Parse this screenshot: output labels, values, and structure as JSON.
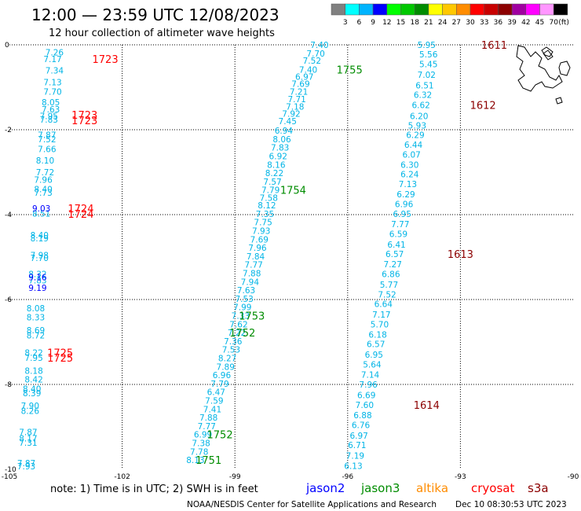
{
  "header": {
    "title": "12:00 — 23:59 UTC 12/08/2023",
    "subtitle": "12 hour collection of altimeter wave heights"
  },
  "legend": {
    "unit": "(ft)",
    "bins": [
      {
        "label": "3",
        "color": "#808080"
      },
      {
        "label": "6",
        "color": "#00ffff"
      },
      {
        "label": "9",
        "color": "#00b4ff"
      },
      {
        "label": "12",
        "color": "#0000ff"
      },
      {
        "label": "15",
        "color": "#00ff00"
      },
      {
        "label": "18",
        "color": "#00c800"
      },
      {
        "label": "21",
        "color": "#008c00"
      },
      {
        "label": "24",
        "color": "#ffff00"
      },
      {
        "label": "27",
        "color": "#ffc800"
      },
      {
        "label": "30",
        "color": "#ff8c00"
      },
      {
        "label": "33",
        "color": "#ff0000"
      },
      {
        "label": "36",
        "color": "#c80000"
      },
      {
        "label": "39",
        "color": "#8c0000"
      },
      {
        "label": "42",
        "color": "#a000a0"
      },
      {
        "label": "45",
        "color": "#ff00ff"
      },
      {
        "label": "70",
        "color": "#ff96ff"
      },
      {
        "label": "",
        "color": "#000000"
      }
    ]
  },
  "map": {
    "lon_range": [
      -105,
      -90
    ],
    "lat_range": [
      -10,
      0
    ],
    "lon_ticks": [
      "-105",
      "-102",
      "-99",
      "-96",
      "-93",
      "-90"
    ],
    "lat_ticks": [
      "0",
      "-2",
      "-4",
      "-6",
      "-8",
      "-10"
    ]
  },
  "colors": {
    "cyan": "#00b4e6",
    "blue": "#0000ff",
    "jason3": "#008c00",
    "cryosat": "#8c0000",
    "altika": "#ff8c00",
    "red": "#ff0000"
  },
  "tracks": [
    {
      "name": "track-a",
      "color": "cyan",
      "points": [
        {
          "lon": -103.8,
          "lat": -0.18,
          "v": "7.26"
        },
        {
          "lon": -103.85,
          "lat": -0.33,
          "v": "7.17"
        },
        {
          "lon": -103.8,
          "lat": -0.6,
          "v": "7.34"
        },
        {
          "lon": -103.85,
          "lat": -0.88,
          "v": "7.13"
        },
        {
          "lon": -103.85,
          "lat": -1.1,
          "v": "7.70"
        },
        {
          "lon": -103.9,
          "lat": -1.35,
          "v": "8.05"
        },
        {
          "lon": -103.9,
          "lat": -1.52,
          "v": "7.63"
        },
        {
          "lon": -103.95,
          "lat": -1.68,
          "v": "7.95"
        },
        {
          "lon": -103.95,
          "lat": -1.76,
          "v": "7.83"
        },
        {
          "lon": -104.0,
          "lat": -2.12,
          "v": "7.87"
        },
        {
          "lon": -104.0,
          "lat": -2.22,
          "v": "7.52"
        },
        {
          "lon": -104.0,
          "lat": -2.45,
          "v": "7.66"
        },
        {
          "lon": -104.05,
          "lat": -2.72,
          "v": "8.10"
        },
        {
          "lon": -104.05,
          "lat": -3.0,
          "v": "7.72"
        },
        {
          "lon": -104.1,
          "lat": -3.18,
          "v": "7.96"
        },
        {
          "lon": -104.1,
          "lat": -3.4,
          "v": "8.40"
        },
        {
          "lon": -104.1,
          "lat": -3.48,
          "v": "7.73"
        },
        {
          "lon": -104.15,
          "lat": -3.97,
          "v": "8.51"
        },
        {
          "lon": -104.2,
          "lat": -4.48,
          "v": "8.40"
        },
        {
          "lon": -104.2,
          "lat": -4.56,
          "v": "8.19"
        },
        {
          "lon": -104.2,
          "lat": -4.95,
          "v": "7.98"
        },
        {
          "lon": -104.2,
          "lat": -5.02,
          "v": "7.70"
        },
        {
          "lon": -104.25,
          "lat": -5.4,
          "v": "8.32"
        },
        {
          "lon": -104.25,
          "lat": -5.55,
          "v": "7.83"
        },
        {
          "lon": -104.3,
          "lat": -6.2,
          "v": "8.08"
        },
        {
          "lon": -104.3,
          "lat": -6.42,
          "v": "8.33"
        },
        {
          "lon": -104.3,
          "lat": -6.72,
          "v": "8.69"
        },
        {
          "lon": -104.3,
          "lat": -6.84,
          "v": "8.72"
        },
        {
          "lon": -104.35,
          "lat": -7.25,
          "v": "8.22"
        },
        {
          "lon": -104.35,
          "lat": -7.37,
          "v": "7.95"
        },
        {
          "lon": -104.35,
          "lat": -7.68,
          "v": "8.18"
        },
        {
          "lon": -104.35,
          "lat": -7.88,
          "v": "8.42"
        },
        {
          "lon": -104.4,
          "lat": -8.1,
          "v": "8.40"
        },
        {
          "lon": -104.4,
          "lat": -8.2,
          "v": "8.39"
        },
        {
          "lon": -104.45,
          "lat": -8.5,
          "v": "7.90"
        },
        {
          "lon": -104.45,
          "lat": -8.62,
          "v": "8.26"
        },
        {
          "lon": -104.5,
          "lat": -9.12,
          "v": "7.87"
        },
        {
          "lon": -104.5,
          "lat": -9.27,
          "v": "8.17"
        },
        {
          "lon": -104.5,
          "lat": -9.37,
          "v": "7.31"
        },
        {
          "lon": -104.55,
          "lat": -9.85,
          "v": "7.87"
        },
        {
          "lon": -104.55,
          "lat": -9.93,
          "v": "7.93"
        }
      ]
    },
    {
      "name": "track-a-blue",
      "color": "blue",
      "points": [
        {
          "lon": -104.15,
          "lat": -3.85,
          "v": "9.03"
        },
        {
          "lon": -104.25,
          "lat": -5.47,
          "v": "9.16"
        },
        {
          "lon": -104.25,
          "lat": -5.72,
          "v": "9.19"
        }
      ]
    },
    {
      "name": "track-b",
      "color": "cyan",
      "points": [
        {
          "lon": -96.75,
          "lat": 0.0,
          "v": "7.40"
        },
        {
          "lon": -96.85,
          "lat": -0.2,
          "v": "7.70"
        },
        {
          "lon": -96.95,
          "lat": -0.37,
          "v": "7.52"
        },
        {
          "lon": -97.05,
          "lat": -0.58,
          "v": "7.40"
        },
        {
          "lon": -97.15,
          "lat": -0.75,
          "v": "6.97"
        },
        {
          "lon": -97.25,
          "lat": -0.92,
          "v": "7.69"
        },
        {
          "lon": -97.3,
          "lat": -1.1,
          "v": "7.21"
        },
        {
          "lon": -97.35,
          "lat": -1.28,
          "v": "7.71"
        },
        {
          "lon": -97.4,
          "lat": -1.45,
          "v": "7.18"
        },
        {
          "lon": -97.5,
          "lat": -1.62,
          "v": "7.92"
        },
        {
          "lon": -97.6,
          "lat": -1.8,
          "v": "7.45"
        },
        {
          "lon": -97.7,
          "lat": -2.02,
          "v": "6.94"
        },
        {
          "lon": -97.75,
          "lat": -2.22,
          "v": "8.06"
        },
        {
          "lon": -97.8,
          "lat": -2.42,
          "v": "7.83"
        },
        {
          "lon": -97.85,
          "lat": -2.62,
          "v": "6.92"
        },
        {
          "lon": -97.9,
          "lat": -2.82,
          "v": "8.16"
        },
        {
          "lon": -97.95,
          "lat": -3.02,
          "v": "8.22"
        },
        {
          "lon": -98.0,
          "lat": -3.22,
          "v": "7.57"
        },
        {
          "lon": -98.05,
          "lat": -3.42,
          "v": "7.79"
        },
        {
          "lon": -98.1,
          "lat": -3.6,
          "v": "7.58"
        },
        {
          "lon": -98.15,
          "lat": -3.78,
          "v": "8.12"
        },
        {
          "lon": -98.2,
          "lat": -3.98,
          "v": "7.35"
        },
        {
          "lon": -98.25,
          "lat": -4.18,
          "v": "7.75"
        },
        {
          "lon": -98.3,
          "lat": -4.38,
          "v": "7.93"
        },
        {
          "lon": -98.35,
          "lat": -4.58,
          "v": "7.69"
        },
        {
          "lon": -98.4,
          "lat": -4.78,
          "v": "7.96"
        },
        {
          "lon": -98.45,
          "lat": -4.98,
          "v": "7.84"
        },
        {
          "lon": -98.5,
          "lat": -5.18,
          "v": "7.77"
        },
        {
          "lon": -98.55,
          "lat": -5.38,
          "v": "7.88"
        },
        {
          "lon": -98.6,
          "lat": -5.58,
          "v": "7.94"
        },
        {
          "lon": -98.7,
          "lat": -5.78,
          "v": "7.63"
        },
        {
          "lon": -98.75,
          "lat": -5.98,
          "v": "7.53"
        },
        {
          "lon": -98.8,
          "lat": -6.18,
          "v": "7.99"
        },
        {
          "lon": -98.85,
          "lat": -6.38,
          "v": "7.33"
        },
        {
          "lon": -98.9,
          "lat": -6.58,
          "v": "7.62"
        },
        {
          "lon": -98.95,
          "lat": -6.78,
          "v": "7.22"
        },
        {
          "lon": -99.05,
          "lat": -6.98,
          "v": "7.36"
        },
        {
          "lon": -99.1,
          "lat": -7.18,
          "v": "7.53"
        },
        {
          "lon": -99.2,
          "lat": -7.38,
          "v": "8.27"
        },
        {
          "lon": -99.25,
          "lat": -7.58,
          "v": "7.89"
        },
        {
          "lon": -99.35,
          "lat": -7.78,
          "v": "6.96"
        },
        {
          "lon": -99.4,
          "lat": -7.98,
          "v": "7.79"
        },
        {
          "lon": -99.5,
          "lat": -8.18,
          "v": "6.47"
        },
        {
          "lon": -99.55,
          "lat": -8.38,
          "v": "7.59"
        },
        {
          "lon": -99.6,
          "lat": -8.58,
          "v": "7.41"
        },
        {
          "lon": -99.7,
          "lat": -8.78,
          "v": "7.88"
        },
        {
          "lon": -99.75,
          "lat": -8.98,
          "v": "7.77"
        },
        {
          "lon": -99.85,
          "lat": -9.18,
          "v": "6.99"
        },
        {
          "lon": -99.9,
          "lat": -9.38,
          "v": "7.38"
        },
        {
          "lon": -99.95,
          "lat": -9.58,
          "v": "7.78"
        },
        {
          "lon": -100.05,
          "lat": -9.78,
          "v": "8.13"
        }
      ]
    },
    {
      "name": "track-c",
      "color": "cyan",
      "points": [
        {
          "lon": -93.9,
          "lat": 0.0,
          "v": "5.95"
        },
        {
          "lon": -93.85,
          "lat": -0.22,
          "v": "5.56"
        },
        {
          "lon": -93.85,
          "lat": -0.45,
          "v": "5.45"
        },
        {
          "lon": -93.9,
          "lat": -0.7,
          "v": "7.02"
        },
        {
          "lon": -93.95,
          "lat": -0.95,
          "v": "6.51"
        },
        {
          "lon": -94.0,
          "lat": -1.18,
          "v": "6.32"
        },
        {
          "lon": -94.05,
          "lat": -1.42,
          "v": "6.62"
        },
        {
          "lon": -94.1,
          "lat": -1.68,
          "v": "6.20"
        },
        {
          "lon": -94.15,
          "lat": -1.9,
          "v": "5.93"
        },
        {
          "lon": -94.2,
          "lat": -2.12,
          "v": "6.29"
        },
        {
          "lon": -94.25,
          "lat": -2.35,
          "v": "6.44"
        },
        {
          "lon": -94.3,
          "lat": -2.58,
          "v": "6.07"
        },
        {
          "lon": -94.35,
          "lat": -2.82,
          "v": "6.30"
        },
        {
          "lon": -94.35,
          "lat": -3.05,
          "v": "6.24"
        },
        {
          "lon": -94.4,
          "lat": -3.28,
          "v": "7.13"
        },
        {
          "lon": -94.45,
          "lat": -3.52,
          "v": "6.29"
        },
        {
          "lon": -94.5,
          "lat": -3.75,
          "v": "6.96"
        },
        {
          "lon": -94.55,
          "lat": -3.98,
          "v": "6.95"
        },
        {
          "lon": -94.6,
          "lat": -4.22,
          "v": "7.77"
        },
        {
          "lon": -94.65,
          "lat": -4.45,
          "v": "6.59"
        },
        {
          "lon": -94.7,
          "lat": -4.7,
          "v": "6.41"
        },
        {
          "lon": -94.75,
          "lat": -4.93,
          "v": "6.57"
        },
        {
          "lon": -94.8,
          "lat": -5.17,
          "v": "7.27"
        },
        {
          "lon": -94.85,
          "lat": -5.4,
          "v": "6.86"
        },
        {
          "lon": -94.9,
          "lat": -5.65,
          "v": "5.77"
        },
        {
          "lon": -94.95,
          "lat": -5.88,
          "v": "7.52"
        },
        {
          "lon": -95.05,
          "lat": -6.1,
          "v": "6.64"
        },
        {
          "lon": -95.1,
          "lat": -6.35,
          "v": "7.17"
        },
        {
          "lon": -95.15,
          "lat": -6.58,
          "v": "5.70"
        },
        {
          "lon": -95.2,
          "lat": -6.82,
          "v": "6.18"
        },
        {
          "lon": -95.25,
          "lat": -7.05,
          "v": "6.57"
        },
        {
          "lon": -95.3,
          "lat": -7.3,
          "v": "6.95"
        },
        {
          "lon": -95.35,
          "lat": -7.53,
          "v": "5.64"
        },
        {
          "lon": -95.4,
          "lat": -7.77,
          "v": "7.14"
        },
        {
          "lon": -95.45,
          "lat": -8.0,
          "v": "7.96"
        },
        {
          "lon": -95.5,
          "lat": -8.25,
          "v": "6.69"
        },
        {
          "lon": -95.55,
          "lat": -8.48,
          "v": "7.60"
        },
        {
          "lon": -95.6,
          "lat": -8.72,
          "v": "6.88"
        },
        {
          "lon": -95.65,
          "lat": -8.95,
          "v": "6.76"
        },
        {
          "lon": -95.7,
          "lat": -9.2,
          "v": "6.97"
        },
        {
          "lon": -95.75,
          "lat": -9.43,
          "v": "6.71"
        },
        {
          "lon": -95.8,
          "lat": -9.68,
          "v": "7.19"
        },
        {
          "lon": -95.85,
          "lat": -9.92,
          "v": "6.13"
        }
      ]
    }
  ],
  "time_labels": [
    {
      "lon": -102.45,
      "lat": -0.33,
      "text": "1723",
      "color": "red"
    },
    {
      "lon": -103.0,
      "lat": -1.65,
      "text": "1723",
      "color": "red"
    },
    {
      "lon": -103.0,
      "lat": -1.78,
      "text": "1723",
      "color": "red"
    },
    {
      "lon": -103.1,
      "lat": -3.85,
      "text": "1724",
      "color": "red"
    },
    {
      "lon": -103.1,
      "lat": -3.98,
      "text": "1724",
      "color": "red"
    },
    {
      "lon": -103.65,
      "lat": -7.25,
      "text": "1725",
      "color": "red"
    },
    {
      "lon": -103.65,
      "lat": -7.37,
      "text": "1725",
      "color": "red"
    },
    {
      "lon": -95.95,
      "lat": -0.58,
      "text": "1755",
      "color": "jason3"
    },
    {
      "lon": -97.45,
      "lat": -3.42,
      "text": "1754",
      "color": "jason3"
    },
    {
      "lon": -98.55,
      "lat": -6.38,
      "text": "1753",
      "color": "jason3"
    },
    {
      "lon": -98.8,
      "lat": -6.78,
      "text": "1752",
      "color": "jason3"
    },
    {
      "lon": -99.4,
      "lat": -9.18,
      "text": "1752",
      "color": "jason3"
    },
    {
      "lon": -99.7,
      "lat": -9.78,
      "text": "1751",
      "color": "jason3"
    },
    {
      "lon": -92.1,
      "lat": 0.0,
      "text": "1611",
      "color": "cryosat"
    },
    {
      "lon": -92.4,
      "lat": -1.42,
      "text": "1612",
      "color": "cryosat"
    },
    {
      "lon": -93.0,
      "lat": -4.93,
      "text": "1613",
      "color": "cryosat"
    },
    {
      "lon": -93.9,
      "lat": -8.48,
      "text": "1614",
      "color": "cryosat"
    }
  ],
  "footer": {
    "note": "note: 1) Time is in UTC; 2) SWH is in feet",
    "satellites": [
      {
        "name": "jason2",
        "color": "#0000ff"
      },
      {
        "name": "jason3",
        "color": "#008c00"
      },
      {
        "name": "altika",
        "color": "#ff8c00"
      },
      {
        "name": "cryosat",
        "color": "#ff0000"
      },
      {
        "name": "s3a",
        "color": "#8c0000"
      }
    ],
    "credit_left": "NOAA/NESDIS Center for Satellite Applications and Research",
    "credit_right": "Dec 10 08:30:53 UTC 2023"
  }
}
